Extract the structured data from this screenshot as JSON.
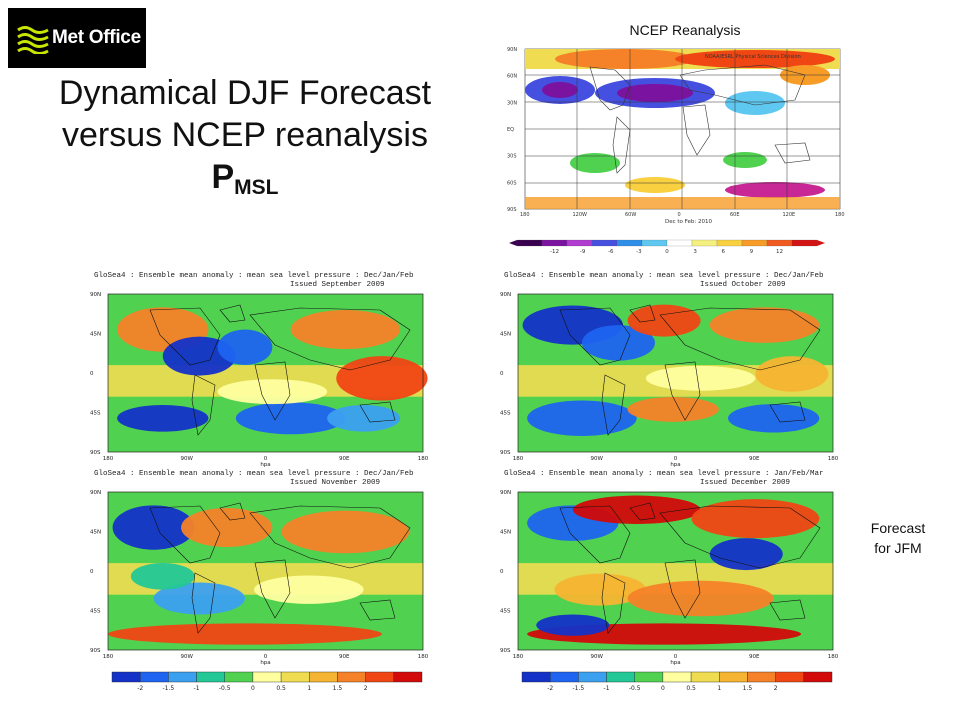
{
  "logo": {
    "text": "Met Office"
  },
  "slide": {
    "title_line1": "Dynamical DJF Forecast",
    "title_line2": "versus NCEP reanalysis",
    "title_symbol": "P",
    "title_subscript": "MSL"
  },
  "ncep": {
    "caption": "NCEP Reanalysis",
    "credit": "NOAA/ESRL Physical Sciences Division",
    "period": "Dec to Feb: 2010",
    "lat_ticks": [
      "90N",
      "60N",
      "30N",
      "EQ",
      "30S",
      "60S",
      "90S"
    ],
    "lon_ticks": [
      "180",
      "120W",
      "60W",
      "0",
      "60E",
      "120E",
      "180"
    ],
    "colorbar_ticks": [
      "-12",
      "-9",
      "-6",
      "-3",
      "0",
      "3",
      "6",
      "9",
      "12"
    ]
  },
  "forecast_maps": [
    {
      "title": "GloSea4 : Ensemble mean anomaly : mean sea level pressure : Dec/Jan/Feb",
      "issued": "Issued September 2009"
    },
    {
      "title": "GloSea4 : Ensemble mean anomaly : mean sea level pressure : Dec/Jan/Feb",
      "issued": "Issued October 2009"
    },
    {
      "title": "GloSea4 : Ensemble mean anomaly : mean sea level pressure : Dec/Jan/Feb",
      "issued": "Issued November 2009"
    },
    {
      "title": "GloSea4 : Ensemble mean anomaly : mean sea level pressure : Jan/Feb/Mar",
      "issued": "Issued December 2009"
    }
  ],
  "forecast_axes": {
    "lat_ticks": [
      "90N",
      "45N",
      "0",
      "45S",
      "90S"
    ],
    "lon_ticks": [
      "180",
      "90W",
      "0",
      "90E",
      "180"
    ],
    "unit": "hpa",
    "colorbar_ticks": [
      "-2",
      "-1.5",
      "-1",
      "-0.5",
      "0",
      "0.5",
      "1",
      "1.5",
      "2"
    ]
  },
  "side_caption": {
    "line1": "Forecast",
    "line2": "for JFM"
  },
  "palettes": {
    "ncep_scale": [
      "#3a0050",
      "#7a14a0",
      "#b03cd0",
      "#4650e0",
      "#2f8fe8",
      "#5fc8f0",
      "#ffffff",
      "#f4f080",
      "#f8d040",
      "#f89c28",
      "#f05a20",
      "#d21414"
    ],
    "forecast_scale": [
      "#1432c8",
      "#1e64f0",
      "#3ca0f0",
      "#23c896",
      "#50d250",
      "#ffffa0",
      "#f0dc50",
      "#f5b432",
      "#f58228",
      "#f04614",
      "#d20a0a"
    ]
  }
}
